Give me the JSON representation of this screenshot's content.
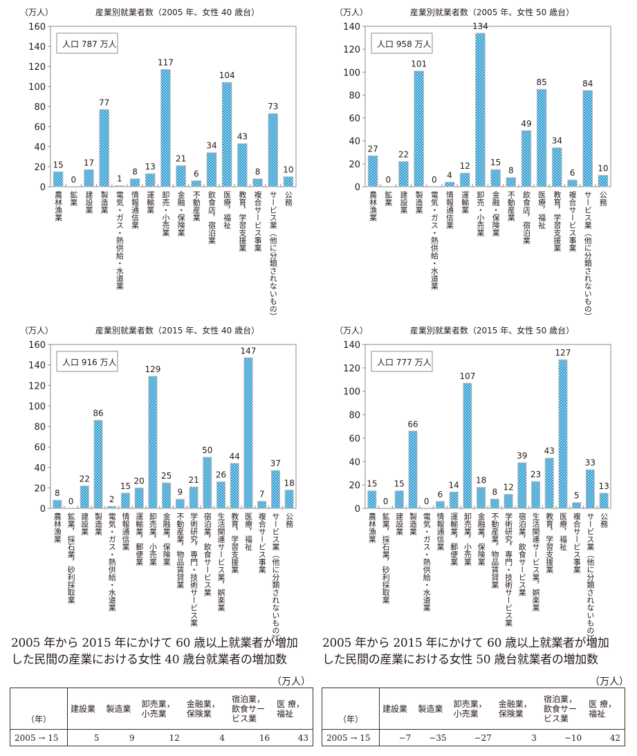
{
  "colors": {
    "bar_fill": "#2a9bd0",
    "bar_dot": "#e6f4fb",
    "axis": "#8a8a8a",
    "text": "#231815"
  },
  "chart_data": [
    {
      "type": "bar",
      "title": "産業別就業者数（2005 年、女性 40 歳台）",
      "ylabel": "（万人）",
      "ylim": [
        0,
        160
      ],
      "yticks": [
        0,
        20,
        40,
        60,
        80,
        100,
        120,
        140,
        160
      ],
      "population_label": "人口 787 万人",
      "categories": [
        "農林漁業",
        "鉱業",
        "建設業",
        "製造業",
        "電気・ガス・熱供給・水道業",
        "情報通信業",
        "運輸業",
        "卸売・小売業",
        "金融・保険業",
        "不動産業",
        "飲食店，宿泊業",
        "医療，福祉",
        "教育，学習支援業",
        "複合サービス事業",
        "サービス業（他に分類されないもの）",
        "公務"
      ],
      "values": [
        15,
        0,
        17,
        77,
        1,
        8,
        13,
        117,
        21,
        6,
        34,
        104,
        43,
        8,
        73,
        10
      ]
    },
    {
      "type": "bar",
      "title": "産業別就業者数（2005 年、女性 50 歳台）",
      "ylabel": "（万人）",
      "ylim": [
        0,
        140
      ],
      "yticks": [
        0,
        20,
        40,
        60,
        80,
        100,
        120,
        140
      ],
      "population_label": "人口 958 万人",
      "categories": [
        "農林漁業",
        "鉱業",
        "建設業",
        "製造業",
        "電気・ガス・熱供給・水道業",
        "情報通信業",
        "運輸業",
        "卸売・小売業",
        "金融・保険業",
        "不動産業",
        "飲食店，宿泊業",
        "医療，福祉",
        "教育，学習支援業",
        "複合サービス事業",
        "サービス業（他に分類されないもの）",
        "公務"
      ],
      "values": [
        27,
        0,
        22,
        101,
        0,
        4,
        12,
        134,
        15,
        8,
        49,
        85,
        34,
        6,
        84,
        10
      ]
    },
    {
      "type": "bar",
      "title": "産業別就業者数（2015 年、女性 40 歳台）",
      "ylabel": "（万人）",
      "ylim": [
        0,
        160
      ],
      "yticks": [
        0,
        20,
        40,
        60,
        80,
        100,
        120,
        140,
        160
      ],
      "population_label": "人口 916 万人",
      "categories": [
        "農林漁業",
        "鉱業，採石業，砂利採取業",
        "建設業",
        "製造業",
        "電気・ガス・熱供給・水道業",
        "情報通信業",
        "運輸業，郵便業",
        "卸売業，小売業",
        "金融業，保険業",
        "不動産業，物品賃貸業",
        "学術研究，専門・技術サービス業",
        "宿泊業，飲食サービス業",
        "生活関連サービス業，娯楽業",
        "教育，学習支援業",
        "医療，福祉",
        "複合サービス事業",
        "サービス業（他に分類されないもの）",
        "公務"
      ],
      "values": [
        8,
        0,
        22,
        86,
        2,
        15,
        20,
        129,
        25,
        9,
        21,
        50,
        26,
        44,
        147,
        7,
        37,
        18
      ]
    },
    {
      "type": "bar",
      "title": "産業別就業者数（2015 年、女性 50 歳台）",
      "ylabel": "（万人）",
      "ylim": [
        0,
        140
      ],
      "yticks": [
        0,
        20,
        40,
        60,
        80,
        100,
        120,
        140
      ],
      "population_label": "人口 777 万人",
      "categories": [
        "農林漁業",
        "鉱業，採石業，砂利採取業",
        "建設業",
        "製造業",
        "電気・ガス・熱供給・水道業",
        "情報通信業",
        "運輸業，郵便業",
        "卸売業，小売業",
        "金融業，保険業",
        "不動産業，物品賃貸業",
        "学術研究，専門・技術サービス業",
        "宿泊業，飲食サービス業",
        "生活関連サービス業，娯楽業",
        "教育，学習支援業",
        "医療，福祉",
        "複合サービス事業",
        "サービス業（他に分類されないもの）",
        "公務"
      ],
      "values": [
        15,
        0,
        15,
        66,
        0,
        6,
        14,
        107,
        18,
        8,
        12,
        39,
        23,
        43,
        127,
        5,
        33,
        13
      ]
    }
  ],
  "tables": [
    {
      "caption_line1": "2005 年から 2015 年にかけて 60 歳以上就業者が増加",
      "caption_line2": "した民間の産業における女性 40 歳台就業者の増加数",
      "unit": "（万人）",
      "year_header": "（年）",
      "headers": [
        "建設業",
        "製造業",
        "卸売業，\n小売業",
        "金融業，\n保険業",
        "宿泊業，\n飲食サー\nビス業",
        "医 療，\n福祉"
      ],
      "row_label": "2005 → 15",
      "values": [
        "5",
        "9",
        "12",
        "4",
        "16",
        "43"
      ]
    },
    {
      "caption_line1": "2005 年から 2015 年にかけて 60 歳以上就業者が増加",
      "caption_line2": "した民間の産業における女性 50 歳台就業者の増加数",
      "unit": "（万人）",
      "year_header": "（年）",
      "headers": [
        "建設業",
        "製造業",
        "卸売業，\n小売業",
        "金融業，\n保険業",
        "宿泊業，\n飲食サー\nビス業",
        "医 療，\n福祉"
      ],
      "row_label": "2005 → 15",
      "values": [
        "−7",
        "−35",
        "−27",
        "3",
        "−10",
        "42"
      ]
    }
  ]
}
